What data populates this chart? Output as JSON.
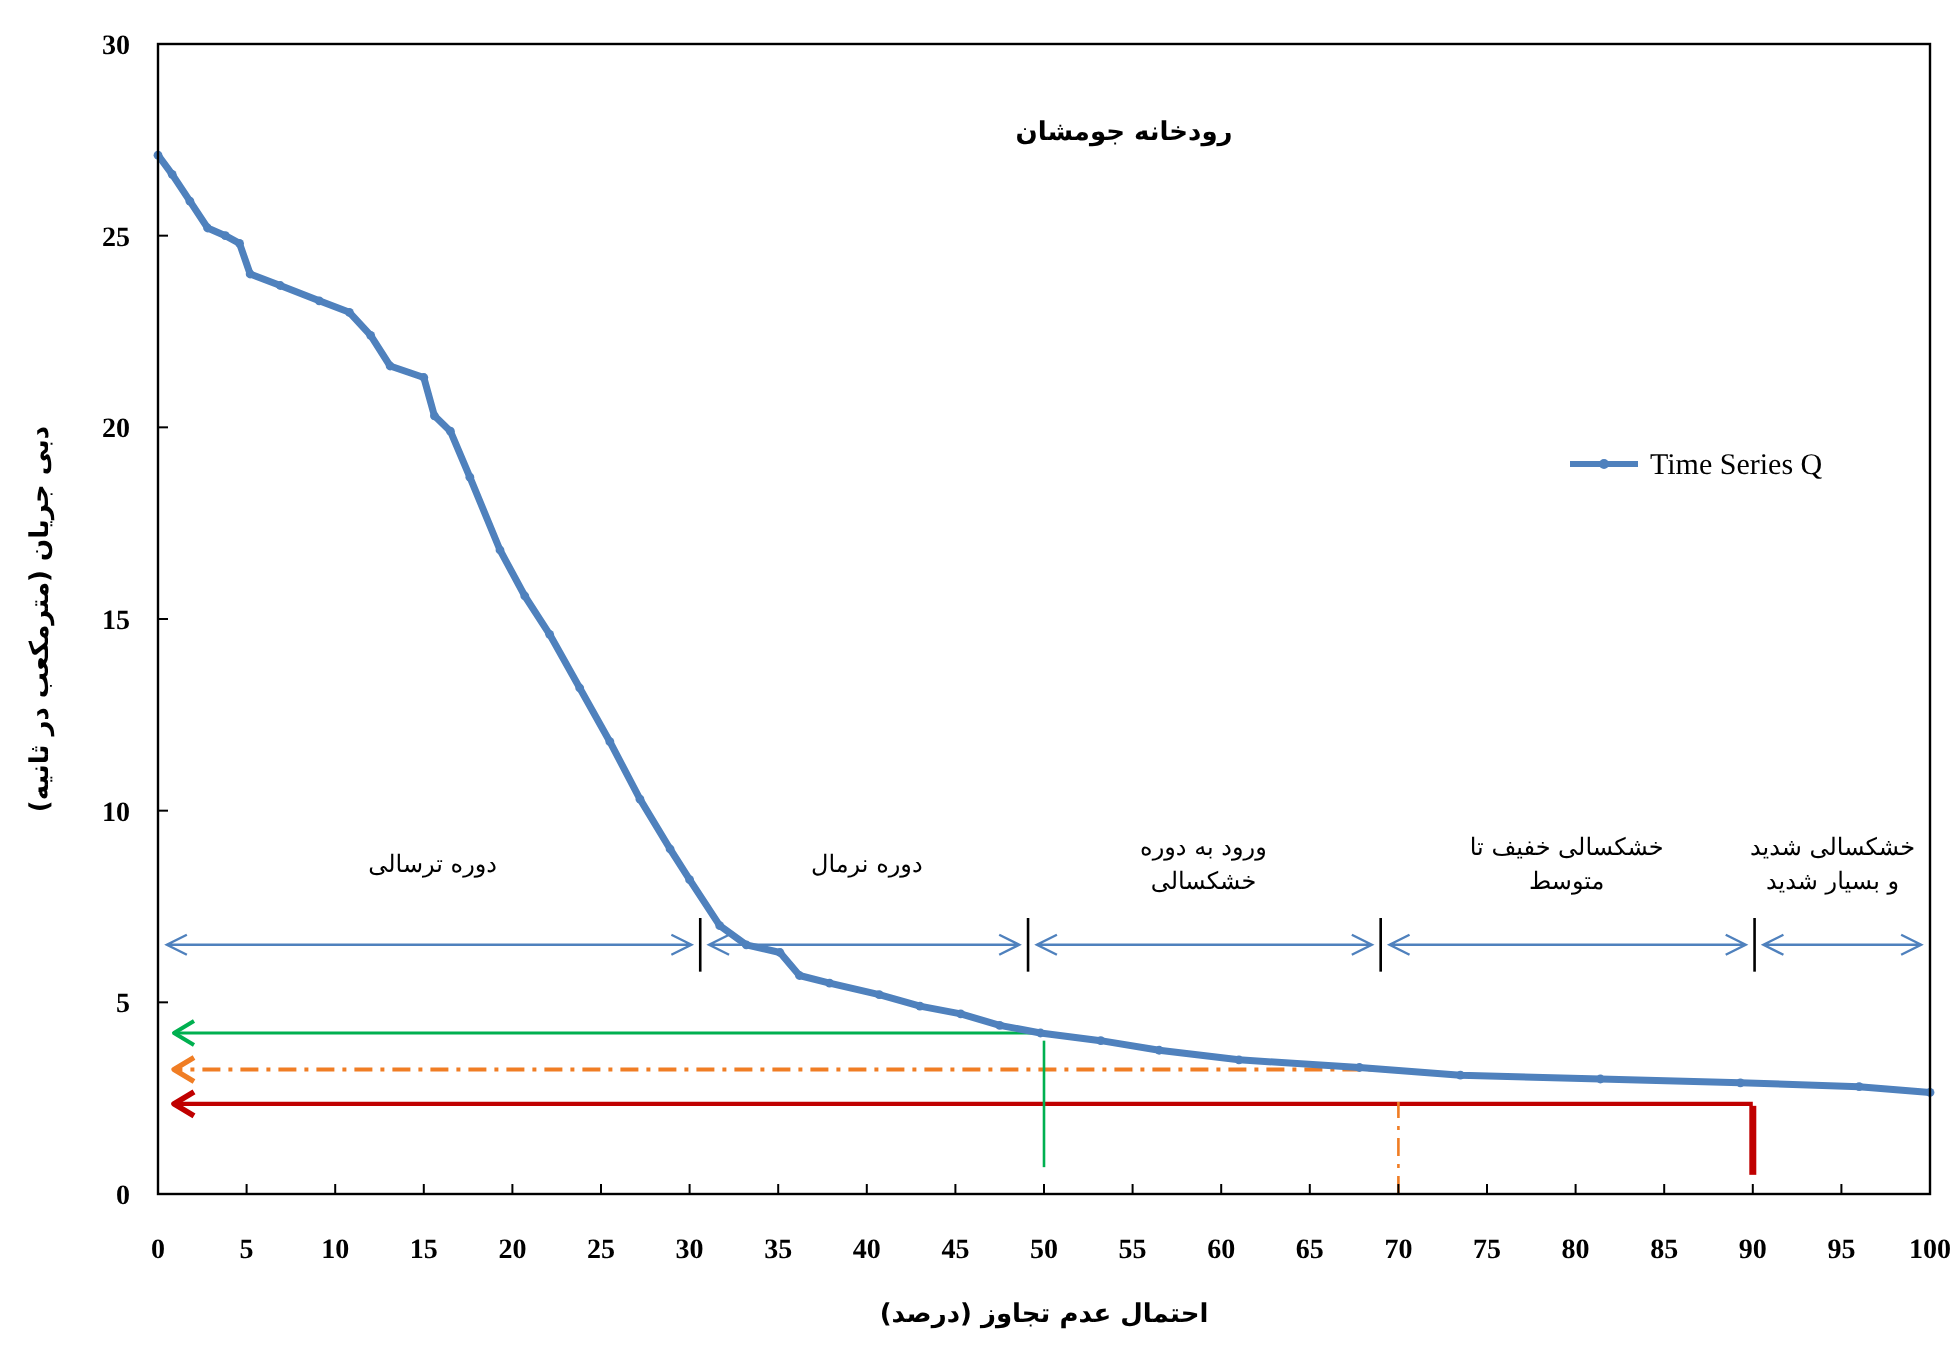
{
  "chart_data": {
    "type": "line",
    "title": "رودخانه جومشان",
    "xlabel": "احتمال عدم تجاوز (درصد)",
    "ylabel": "دبی جریان (مترمکعب در ثانیه)",
    "xlim": [
      0,
      100
    ],
    "xticks": [
      0,
      5,
      10,
      15,
      20,
      25,
      30,
      35,
      40,
      45,
      50,
      55,
      60,
      65,
      70,
      75,
      80,
      85,
      90,
      95,
      100
    ],
    "ylim": [
      0,
      30
    ],
    "yticks": [
      0,
      5,
      10,
      15,
      20,
      25,
      30
    ],
    "grid": false,
    "legend": "right",
    "series": [
      {
        "name": "Time Series Q",
        "color": "#4f81bd",
        "marker": "circle",
        "x": [
          0,
          0.8,
          1.8,
          2.8,
          3.8,
          4.6,
          5.2,
          6.9,
          9.1,
          10.8,
          12,
          13.1,
          15,
          15.6,
          16.5,
          17.6,
          19.3,
          20.7,
          22.1,
          23.8,
          25.5,
          27.2,
          28.9,
          30,
          31.7,
          33.2,
          35.1,
          36.2,
          37.9,
          40.7,
          43,
          45.3,
          47.5,
          49.8,
          53.2,
          56.5,
          61,
          67.8,
          73.5,
          81.4,
          89.3,
          96,
          100
        ],
        "values": [
          27.1,
          26.6,
          25.9,
          25.2,
          25.0,
          24.8,
          24.0,
          23.7,
          23.3,
          23.0,
          22.4,
          21.6,
          21.3,
          20.3,
          19.9,
          18.7,
          16.8,
          15.6,
          14.6,
          13.2,
          11.8,
          10.3,
          9.0,
          8.2,
          7.0,
          6.5,
          6.3,
          5.7,
          5.5,
          5.2,
          4.9,
          4.7,
          4.4,
          4.2,
          4.0,
          3.75,
          3.5,
          3.3,
          3.1,
          3.0,
          2.9,
          2.8,
          2.65
        ]
      },
      {
        "type": "line",
        "color": "#000000",
        "line_style": "solid",
        "x": [
          30.6,
          30.6
        ],
        "values": [
          5.8,
          7.2
        ]
      },
      {
        "type": "line",
        "color": "#000000",
        "line_style": "solid",
        "x": [
          49.1,
          49.1
        ],
        "values": [
          5.8,
          7.2
        ]
      },
      {
        "type": "line",
        "color": "#000000",
        "line_style": "solid",
        "x": [
          69,
          69
        ],
        "values": [
          5.8,
          7.2
        ]
      },
      {
        "type": "line",
        "color": "#000000",
        "line_style": "solid",
        "x": [
          90.1,
          90.1
        ],
        "values": [
          5.8,
          7.2
        ]
      },
      {
        "type": "line",
        "color": "#00b050",
        "line_style": "solid",
        "x": [
          50,
          50
        ],
        "values": [
          0.7,
          4.0
        ]
      },
      {
        "type": "line",
        "color": "#f07d24",
        "line_style": "dashed",
        "x": [
          70,
          70
        ],
        "values": [
          0,
          2.4
        ]
      },
      {
        "type": "line",
        "color": "#c00000",
        "line_style": "solid",
        "x": [
          90,
          90
        ],
        "values": [
          0.5,
          2.3
        ]
      }
    ],
    "ref_lines": [
      {
        "axis": "y",
        "value": 4.2,
        "color": "#00b050",
        "line_style": "solid"
      },
      {
        "axis": "y",
        "value": 3.25,
        "color": "#f07d24",
        "line_style": "dashed"
      },
      {
        "axis": "y",
        "value": 2.35,
        "color": "#c00000",
        "line_style": "solid"
      }
    ],
    "annotations": [
      "دوره ترسالی",
      "دوره نرمال",
      "ورود به دوره\nخشکسالی",
      "خشکسالی خفیف تا\nمتوسط",
      "خشکسالی شدید\nو بسیار شدید"
    ]
  }
}
